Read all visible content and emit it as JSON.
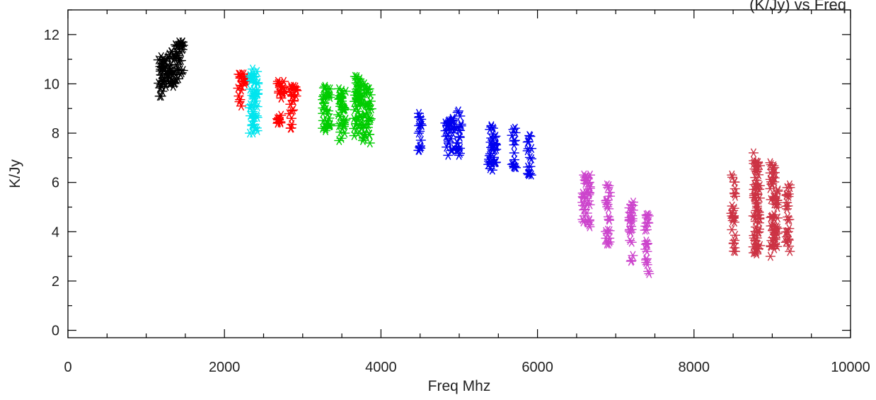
{
  "chart_data": {
    "type": "scatter",
    "title": "(K/Jy) vs Freq",
    "xlabel": "Freq Mhz",
    "ylabel": "K/Jy",
    "xlim": [
      0,
      10000
    ],
    "ylim": [
      -0.3,
      13
    ],
    "x_ticks": [
      0,
      2000,
      4000,
      6000,
      8000,
      10000
    ],
    "y_ticks": [
      0,
      2,
      4,
      6,
      8,
      10,
      12
    ],
    "grid": false,
    "legend": "none",
    "marker": "asterisk",
    "series": [
      {
        "color": "#000000",
        "columns": [
          {
            "x": 1180,
            "ymin": 9.5,
            "ymax": 11.1
          },
          {
            "x": 1230,
            "ymin": 9.7,
            "ymax": 11.0
          },
          {
            "x": 1290,
            "ymin": 10.0,
            "ymax": 11.2
          },
          {
            "x": 1340,
            "ymin": 9.9,
            "ymax": 11.3
          },
          {
            "x": 1400,
            "ymin": 10.2,
            "ymax": 11.7
          },
          {
            "x": 1450,
            "ymin": 10.4,
            "ymax": 11.7
          }
        ]
      },
      {
        "color": "#ff0000",
        "columns": [
          {
            "x": 2200,
            "ymin": 9.1,
            "ymax": 10.4
          },
          {
            "x": 2250,
            "ymin": 10.0,
            "ymax": 10.4
          },
          {
            "x": 2700,
            "ymin": 8.4,
            "ymax": 10.1
          },
          {
            "x": 2750,
            "ymin": 9.6,
            "ymax": 10.1
          },
          {
            "x": 2850,
            "ymin": 8.2,
            "ymax": 9.9
          },
          {
            "x": 2900,
            "ymin": 9.3,
            "ymax": 9.9
          }
        ]
      },
      {
        "color": "#00e5ee",
        "columns": [
          {
            "x": 2350,
            "ymin": 8.0,
            "ymax": 10.6
          },
          {
            "x": 2400,
            "ymin": 8.1,
            "ymax": 10.5
          }
        ]
      },
      {
        "color": "#00cc00",
        "columns": [
          {
            "x": 3280,
            "ymin": 8.1,
            "ymax": 9.9
          },
          {
            "x": 3330,
            "ymin": 8.3,
            "ymax": 9.8
          },
          {
            "x": 3480,
            "ymin": 7.7,
            "ymax": 9.8
          },
          {
            "x": 3530,
            "ymin": 8.0,
            "ymax": 9.7
          },
          {
            "x": 3680,
            "ymin": 7.9,
            "ymax": 10.3
          },
          {
            "x": 3730,
            "ymin": 8.3,
            "ymax": 10.2
          },
          {
            "x": 3780,
            "ymin": 7.7,
            "ymax": 10.0
          },
          {
            "x": 3850,
            "ymin": 7.6,
            "ymax": 9.8
          }
        ]
      },
      {
        "color": "#0000ee",
        "columns": [
          {
            "x": 4500,
            "ymin": 7.3,
            "ymax": 8.8
          },
          {
            "x": 4850,
            "ymin": 7.1,
            "ymax": 8.5
          },
          {
            "x": 4920,
            "ymin": 7.3,
            "ymax": 8.6
          },
          {
            "x": 5000,
            "ymin": 7.1,
            "ymax": 8.9
          },
          {
            "x": 5400,
            "ymin": 6.5,
            "ymax": 8.3
          },
          {
            "x": 5450,
            "ymin": 6.8,
            "ymax": 8.2
          },
          {
            "x": 5700,
            "ymin": 6.6,
            "ymax": 8.2
          },
          {
            "x": 5900,
            "ymin": 6.3,
            "ymax": 7.9
          }
        ]
      },
      {
        "color": "#cc44cc",
        "columns": [
          {
            "x": 6600,
            "ymin": 4.4,
            "ymax": 6.3
          },
          {
            "x": 6650,
            "ymin": 4.2,
            "ymax": 6.3
          },
          {
            "x": 6900,
            "ymin": 3.5,
            "ymax": 5.9
          },
          {
            "x": 7200,
            "ymin": 2.8,
            "ymax": 5.2
          },
          {
            "x": 7400,
            "ymin": 2.3,
            "ymax": 4.7
          }
        ]
      },
      {
        "color": "#cc3344",
        "columns": [
          {
            "x": 8500,
            "ymin": 3.2,
            "ymax": 6.3
          },
          {
            "x": 8780,
            "ymin": 3.1,
            "ymax": 7.2
          },
          {
            "x": 8820,
            "ymin": 3.3,
            "ymax": 6.8
          },
          {
            "x": 9000,
            "ymin": 3.0,
            "ymax": 6.8
          },
          {
            "x": 9050,
            "ymin": 3.4,
            "ymax": 6.4
          },
          {
            "x": 9200,
            "ymin": 3.2,
            "ymax": 5.9
          }
        ]
      }
    ]
  }
}
